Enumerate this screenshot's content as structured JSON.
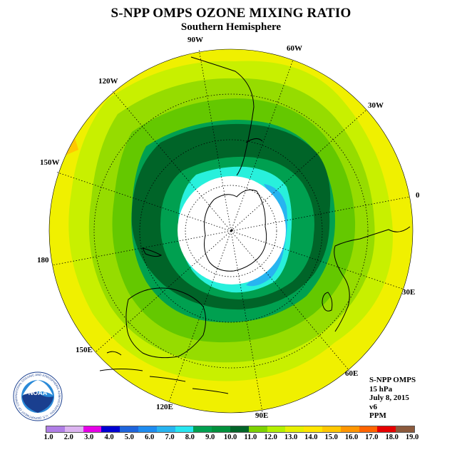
{
  "header": {
    "title": "S-NPP OMPS OZONE MIXING RATIO",
    "subtitle": "Southern Hemisphere"
  },
  "longitude_labels": {
    "lon_90w": "90W",
    "lon_60w": "60W",
    "lon_120w": "120W",
    "lon_30w": "30W",
    "lon_150w": "150W",
    "lon_0": "0",
    "lon_180": "180",
    "lon_30e": "30E",
    "lon_150e": "150E",
    "lon_60e": "60E",
    "lon_120e": "120E",
    "lon_90e": "90E"
  },
  "info_box": {
    "instrument": "S-NPP OMPS",
    "level": "15 hPa",
    "date": "July 8, 2015",
    "version": "v6",
    "units": "PPM"
  },
  "logo": {
    "text": "NOAA",
    "ring_text": "NATIONAL OCEANIC AND ATMOSPHERIC ADMINISTRATION · U.S. DEPARTMENT OF COMMERCE"
  },
  "colorbar": {
    "colors": [
      "#b07ee6",
      "#dcb4f0",
      "#e600e6",
      "#0000d2",
      "#1e64dc",
      "#1e8cf0",
      "#28b4f0",
      "#28e6f0",
      "#00a050",
      "#00913c",
      "#006428",
      "#7dd200",
      "#b4f000",
      "#e6f000",
      "#ffe600",
      "#ffc800",
      "#ff9600",
      "#ff6400",
      "#e60000",
      "#8c5a3c"
    ],
    "tick_labels": [
      "1.0",
      "2.0",
      "3.0",
      "4.0",
      "5.0",
      "6.0",
      "7.0",
      "8.0",
      "9.0",
      "10.0",
      "11.0",
      "12.0",
      "13.0",
      "14.0",
      "15.0",
      "16.0",
      "17.0",
      "18.0",
      "19.0"
    ]
  },
  "map_colors": {
    "yellow": "#f0f000",
    "orange": "#ffc800",
    "lime_yellow": "#c8f000",
    "light_green": "#96dc00",
    "green_mid": "#64c800",
    "green": "#00a050",
    "dark_green": "#006428",
    "cyan": "#28f0dc",
    "sky_blue": "#28b4f0",
    "pole_white": "#ffffff"
  }
}
